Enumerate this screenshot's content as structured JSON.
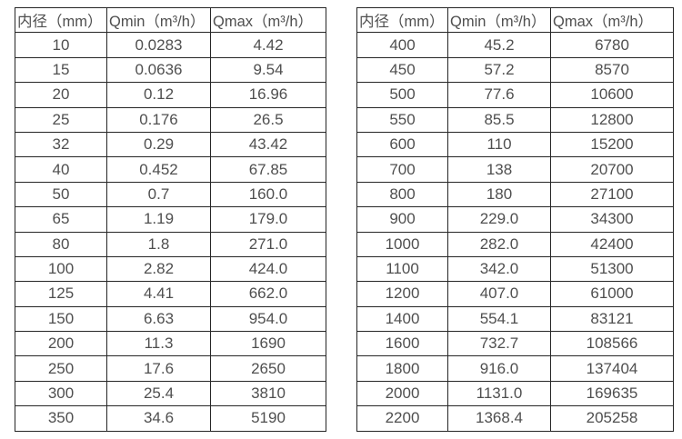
{
  "colors": {
    "border": "#262626",
    "text": "#4f4f4f",
    "background": "#ffffff"
  },
  "tables": [
    {
      "name": "flow-range-table-small-diameters",
      "headers": [
        "内径（mm）",
        "Qmin（m³/h）",
        "Qmax（m³/h）"
      ],
      "rows": [
        [
          "10",
          "0.0283",
          "4.42"
        ],
        [
          "15",
          "0.0636",
          "9.54"
        ],
        [
          "20",
          "0.12",
          "16.96"
        ],
        [
          "25",
          "0.176",
          "26.5"
        ],
        [
          "32",
          "0.29",
          "43.42"
        ],
        [
          "40",
          "0.452",
          "67.85"
        ],
        [
          "50",
          "0.7",
          "160.0"
        ],
        [
          "65",
          "1.19",
          "179.0"
        ],
        [
          "80",
          "1.8",
          "271.0"
        ],
        [
          "100",
          "2.82",
          "424.0"
        ],
        [
          "125",
          "4.41",
          "662.0"
        ],
        [
          "150",
          "6.63",
          "954.0"
        ],
        [
          "200",
          "11.3",
          "1690"
        ],
        [
          "250",
          "17.6",
          "2650"
        ],
        [
          "300",
          "25.4",
          "3810"
        ],
        [
          "350",
          "34.6",
          "5190"
        ]
      ]
    },
    {
      "name": "flow-range-table-large-diameters",
      "headers": [
        "内径（mm）",
        "Qmin（m³/h）",
        "Qmax（m³/h）"
      ],
      "rows": [
        [
          "400",
          "45.2",
          "6780"
        ],
        [
          "450",
          "57.2",
          "8570"
        ],
        [
          "500",
          "77.6",
          "10600"
        ],
        [
          "550",
          "85.5",
          "12800"
        ],
        [
          "600",
          "110",
          "15200"
        ],
        [
          "700",
          "138",
          "20700"
        ],
        [
          "800",
          "180",
          "27100"
        ],
        [
          "900",
          "229.0",
          "34300"
        ],
        [
          "1000",
          "282.0",
          "42400"
        ],
        [
          "1100",
          "342.0",
          "51300"
        ],
        [
          "1200",
          "407.0",
          "61000"
        ],
        [
          "1400",
          "554.1",
          "83121"
        ],
        [
          "1600",
          "732.7",
          "108566"
        ],
        [
          "1800",
          "916.0",
          "137404"
        ],
        [
          "2000",
          "1131.0",
          "169635"
        ],
        [
          "2200",
          "1368.4",
          "205258"
        ]
      ]
    }
  ]
}
